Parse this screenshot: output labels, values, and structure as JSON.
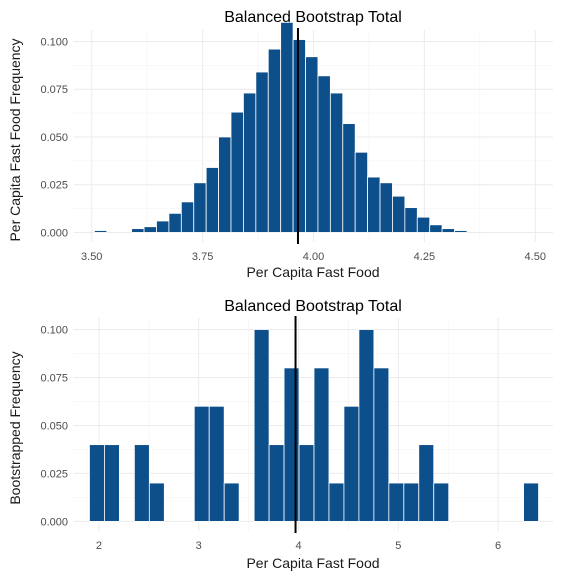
{
  "chart_data": [
    {
      "type": "bar",
      "title": "Balanced Bootstrap Total",
      "xlabel": "Per Capita Fast Food",
      "ylabel": "Per Capita Fast Food Frequency",
      "xlim": [
        3.46,
        4.54
      ],
      "ylim": [
        -0.005,
        0.106
      ],
      "x_ticks": [
        "3.50",
        "3.75",
        "4.00",
        "4.25",
        "4.50"
      ],
      "x_tick_values": [
        3.5,
        3.75,
        4.0,
        4.25,
        4.5
      ],
      "y_ticks": [
        "0.000",
        "0.025",
        "0.050",
        "0.075",
        "0.100"
      ],
      "y_tick_values": [
        0.0,
        0.025,
        0.05,
        0.075,
        0.1
      ],
      "bin_width": 0.028,
      "bin_centers": [
        3.52,
        3.548,
        3.576,
        3.604,
        3.632,
        3.66,
        3.688,
        3.716,
        3.744,
        3.772,
        3.8,
        3.828,
        3.856,
        3.884,
        3.912,
        3.94,
        3.968,
        3.996,
        4.024,
        4.052,
        4.08,
        4.108,
        4.136,
        4.164,
        4.192,
        4.22,
        4.248,
        4.276,
        4.304,
        4.332,
        4.36,
        4.388
      ],
      "values": [
        0.001,
        0.0,
        0.0,
        0.002,
        0.003,
        0.006,
        0.01,
        0.016,
        0.026,
        0.034,
        0.05,
        0.063,
        0.073,
        0.084,
        0.096,
        0.11,
        0.101,
        0.092,
        0.082,
        0.073,
        0.057,
        0.042,
        0.029,
        0.026,
        0.019,
        0.013,
        0.008,
        0.004,
        0.002,
        0.001,
        0.0,
        0.0
      ],
      "reference_line": 3.965,
      "grid": true,
      "bar_color": "#0d4f8b"
    },
    {
      "type": "bar",
      "title": "Balanced Bootstrap Total",
      "xlabel": "Per Capita Fast Food",
      "ylabel": "Bootstrapped Frequency",
      "xlim": [
        1.75,
        6.55
      ],
      "ylim": [
        -0.005,
        0.106
      ],
      "x_ticks": [
        "2",
        "3",
        "4",
        "5",
        "6"
      ],
      "x_tick_values": [
        2,
        3,
        4,
        5,
        6
      ],
      "y_ticks": [
        "0.000",
        "0.025",
        "0.050",
        "0.075",
        "0.100"
      ],
      "y_tick_values": [
        0.0,
        0.025,
        0.05,
        0.075,
        0.1
      ],
      "bin_width": 0.15,
      "bin_centers": [
        1.98,
        2.13,
        2.28,
        2.43,
        2.58,
        2.73,
        2.88,
        3.03,
        3.18,
        3.33,
        3.48,
        3.63,
        3.78,
        3.93,
        4.08,
        4.23,
        4.38,
        4.53,
        4.68,
        4.83,
        4.98,
        5.13,
        5.28,
        5.43,
        5.58,
        5.73,
        5.88,
        6.03,
        6.18,
        6.33
      ],
      "values": [
        0.04,
        0.04,
        0.0,
        0.04,
        0.02,
        0.0,
        0.0,
        0.06,
        0.06,
        0.02,
        0.0,
        0.1,
        0.04,
        0.08,
        0.04,
        0.08,
        0.02,
        0.06,
        0.1,
        0.08,
        0.02,
        0.02,
        0.04,
        0.02,
        0.0,
        0.0,
        0.0,
        0.0,
        0.0,
        0.02
      ],
      "reference_line": 3.97,
      "grid": true,
      "bar_color": "#0d4f8b"
    }
  ]
}
